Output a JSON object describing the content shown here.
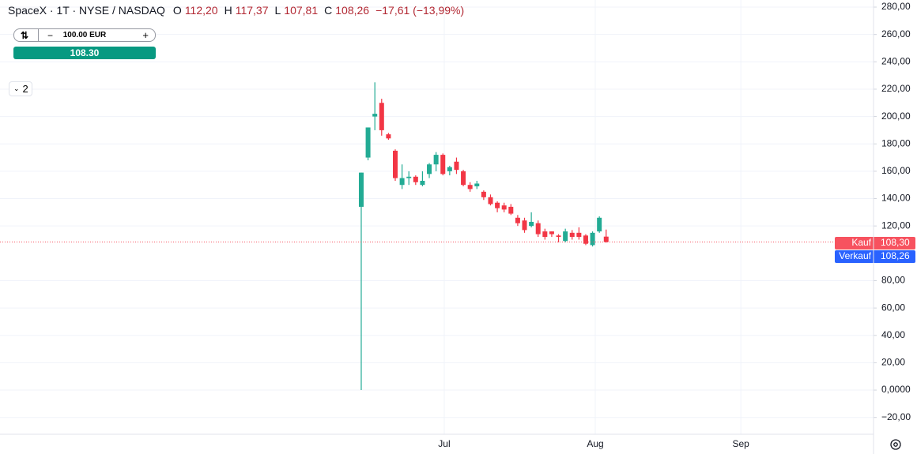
{
  "header": {
    "title": "SpaceX · 1T · NYSE / NASDAQ",
    "open_label": "O",
    "open": "112,20",
    "high_label": "H",
    "high": "117,37",
    "low_label": "L",
    "low": "107,81",
    "close_label": "C",
    "close": "108,26",
    "change": "−17,61 (−13,99%)"
  },
  "trade_widget": {
    "quantity": "100.00 EUR",
    "price": "108.30",
    "collapsed_count": "2"
  },
  "chart_data": {
    "type": "candlestick",
    "up_color": "#22ab94",
    "down_color": "#f23645",
    "grid": true,
    "x": [
      0,
      1,
      2,
      3,
      4,
      5,
      6,
      7,
      8,
      9,
      10,
      11,
      12,
      13,
      14,
      15,
      16,
      17,
      18,
      19,
      20,
      21,
      22,
      23,
      24,
      25,
      26,
      27,
      28,
      29,
      30,
      31,
      32,
      33,
      34,
      35,
      36
    ],
    "open": [
      134,
      170,
      200,
      210,
      187,
      175,
      150,
      155,
      156,
      150,
      158,
      165,
      172,
      160,
      167,
      160,
      150,
      149,
      145,
      141,
      137,
      135,
      134,
      126,
      124,
      120,
      122,
      116,
      116,
      113,
      109,
      115,
      115,
      113,
      106,
      116,
      112.2
    ],
    "high": [
      159,
      192,
      225,
      213,
      188,
      176,
      165,
      160,
      157,
      160,
      166,
      174,
      173,
      164,
      170,
      161,
      152,
      153,
      146,
      143,
      138,
      137,
      136,
      128,
      126,
      130,
      124,
      118,
      116,
      114,
      118,
      117,
      119,
      114,
      116,
      127,
      117.37
    ],
    "low": [
      0,
      168,
      190,
      186,
      183,
      153,
      147,
      150,
      150,
      149,
      155,
      160,
      157,
      157,
      158,
      149,
      145,
      147,
      139,
      135,
      130,
      130,
      128,
      120,
      115,
      119,
      112,
      110,
      112,
      108,
      108,
      110,
      110,
      106,
      105,
      115,
      107.81
    ],
    "close": [
      159,
      192,
      202,
      190,
      184,
      155,
      155,
      156,
      152,
      153,
      165,
      172,
      158,
      163,
      161,
      150,
      147,
      151,
      141,
      136,
      133,
      132,
      129,
      122,
      117,
      123,
      114,
      112,
      114,
      112,
      116,
      112,
      112,
      107,
      115,
      126,
      108.26
    ],
    "xlim": [
      -53.1,
      75.3
    ],
    "xticks": [
      {
        "value": 12.2,
        "label": "Jul"
      },
      {
        "value": 34.4,
        "label": "Aug"
      },
      {
        "value": 55.8,
        "label": "Sep"
      }
    ],
    "ylim": [
      -32.3,
      285.2
    ],
    "yticks": [
      {
        "value": 280,
        "label": "280,00"
      },
      {
        "value": 260,
        "label": "260,00"
      },
      {
        "value": 240,
        "label": "240,00"
      },
      {
        "value": 220,
        "label": "220,00"
      },
      {
        "value": 200,
        "label": "200,00"
      },
      {
        "value": 180,
        "label": "180,00"
      },
      {
        "value": 160,
        "label": "160,00"
      },
      {
        "value": 140,
        "label": "140,00"
      },
      {
        "value": 120,
        "label": "120,00"
      },
      {
        "value": 80,
        "label": "80,00"
      },
      {
        "value": 60,
        "label": "60,00"
      },
      {
        "value": 40,
        "label": "40,00"
      },
      {
        "value": 20,
        "label": "20,00"
      },
      {
        "value": 0,
        "label": "0,0000"
      },
      {
        "value": -20,
        "label": "−20,00"
      }
    ],
    "price_lines": [
      {
        "name": "Kauf",
        "value": 108.3,
        "label": "108,30",
        "color": "#f7525f"
      },
      {
        "name": "Verkauf",
        "value": 108.26,
        "label": "108,26",
        "color": "#2962ff"
      }
    ]
  }
}
